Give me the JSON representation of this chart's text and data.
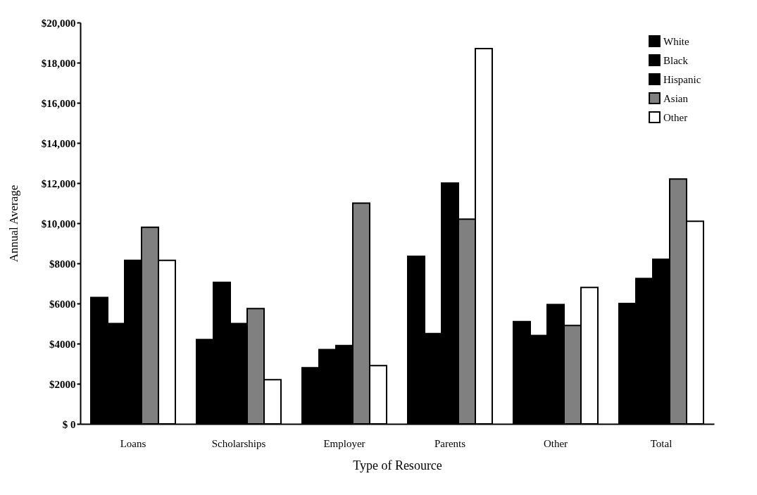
{
  "chart_data": {
    "type": "bar",
    "xlabel": "Type of Resource",
    "ylabel": "Annual Average",
    "categories": [
      "Loans",
      "Scholarships",
      "Employer",
      "Parents",
      "Other",
      "Total"
    ],
    "series": [
      {
        "name": "White",
        "color": "#000000",
        "values": [
          6300,
          4200,
          2800,
          8350,
          5100,
          6000
        ]
      },
      {
        "name": "Black",
        "color": "#000000",
        "values": [
          5000,
          7050,
          3700,
          4500,
          4400,
          7250
        ]
      },
      {
        "name": "Hispanic",
        "color": "#000000",
        "values": [
          8150,
          5000,
          3900,
          12000,
          5950,
          8200
        ]
      },
      {
        "name": "Asian",
        "color": "#808080",
        "values": [
          9800,
          5750,
          11000,
          10200,
          4900,
          12200
        ]
      },
      {
        "name": "Other",
        "color": "#ffffff",
        "values": [
          8150,
          2200,
          2900,
          18700,
          6800,
          10100
        ]
      }
    ],
    "ylim": [
      0,
      20000
    ],
    "yticks": [
      {
        "value": 0,
        "label": "$ 0"
      },
      {
        "value": 2000,
        "label": "$2000"
      },
      {
        "value": 4000,
        "label": "$4000"
      },
      {
        "value": 6000,
        "label": "$6000"
      },
      {
        "value": 8000,
        "label": "$8000"
      },
      {
        "value": 10000,
        "label": "$10,000"
      },
      {
        "value": 12000,
        "label": "$12,000"
      },
      {
        "value": 14000,
        "label": "$14,000"
      },
      {
        "value": 16000,
        "label": "$16,000"
      },
      {
        "value": 18000,
        "label": "$18,000"
      },
      {
        "value": 20000,
        "label": "$20,000"
      }
    ],
    "grid": false,
    "legend": "top right"
  }
}
